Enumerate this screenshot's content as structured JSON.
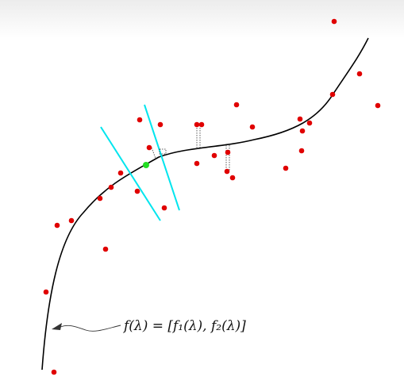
{
  "figure": {
    "curve_label": "f(λ) = [f₁(λ),  f₂(λ)]",
    "colors": {
      "curve": "#000000",
      "data_points": "#e00000",
      "projection_lines": "#00e5ee",
      "highlight_point": "#22dd22",
      "connector": "#333333"
    }
  }
}
